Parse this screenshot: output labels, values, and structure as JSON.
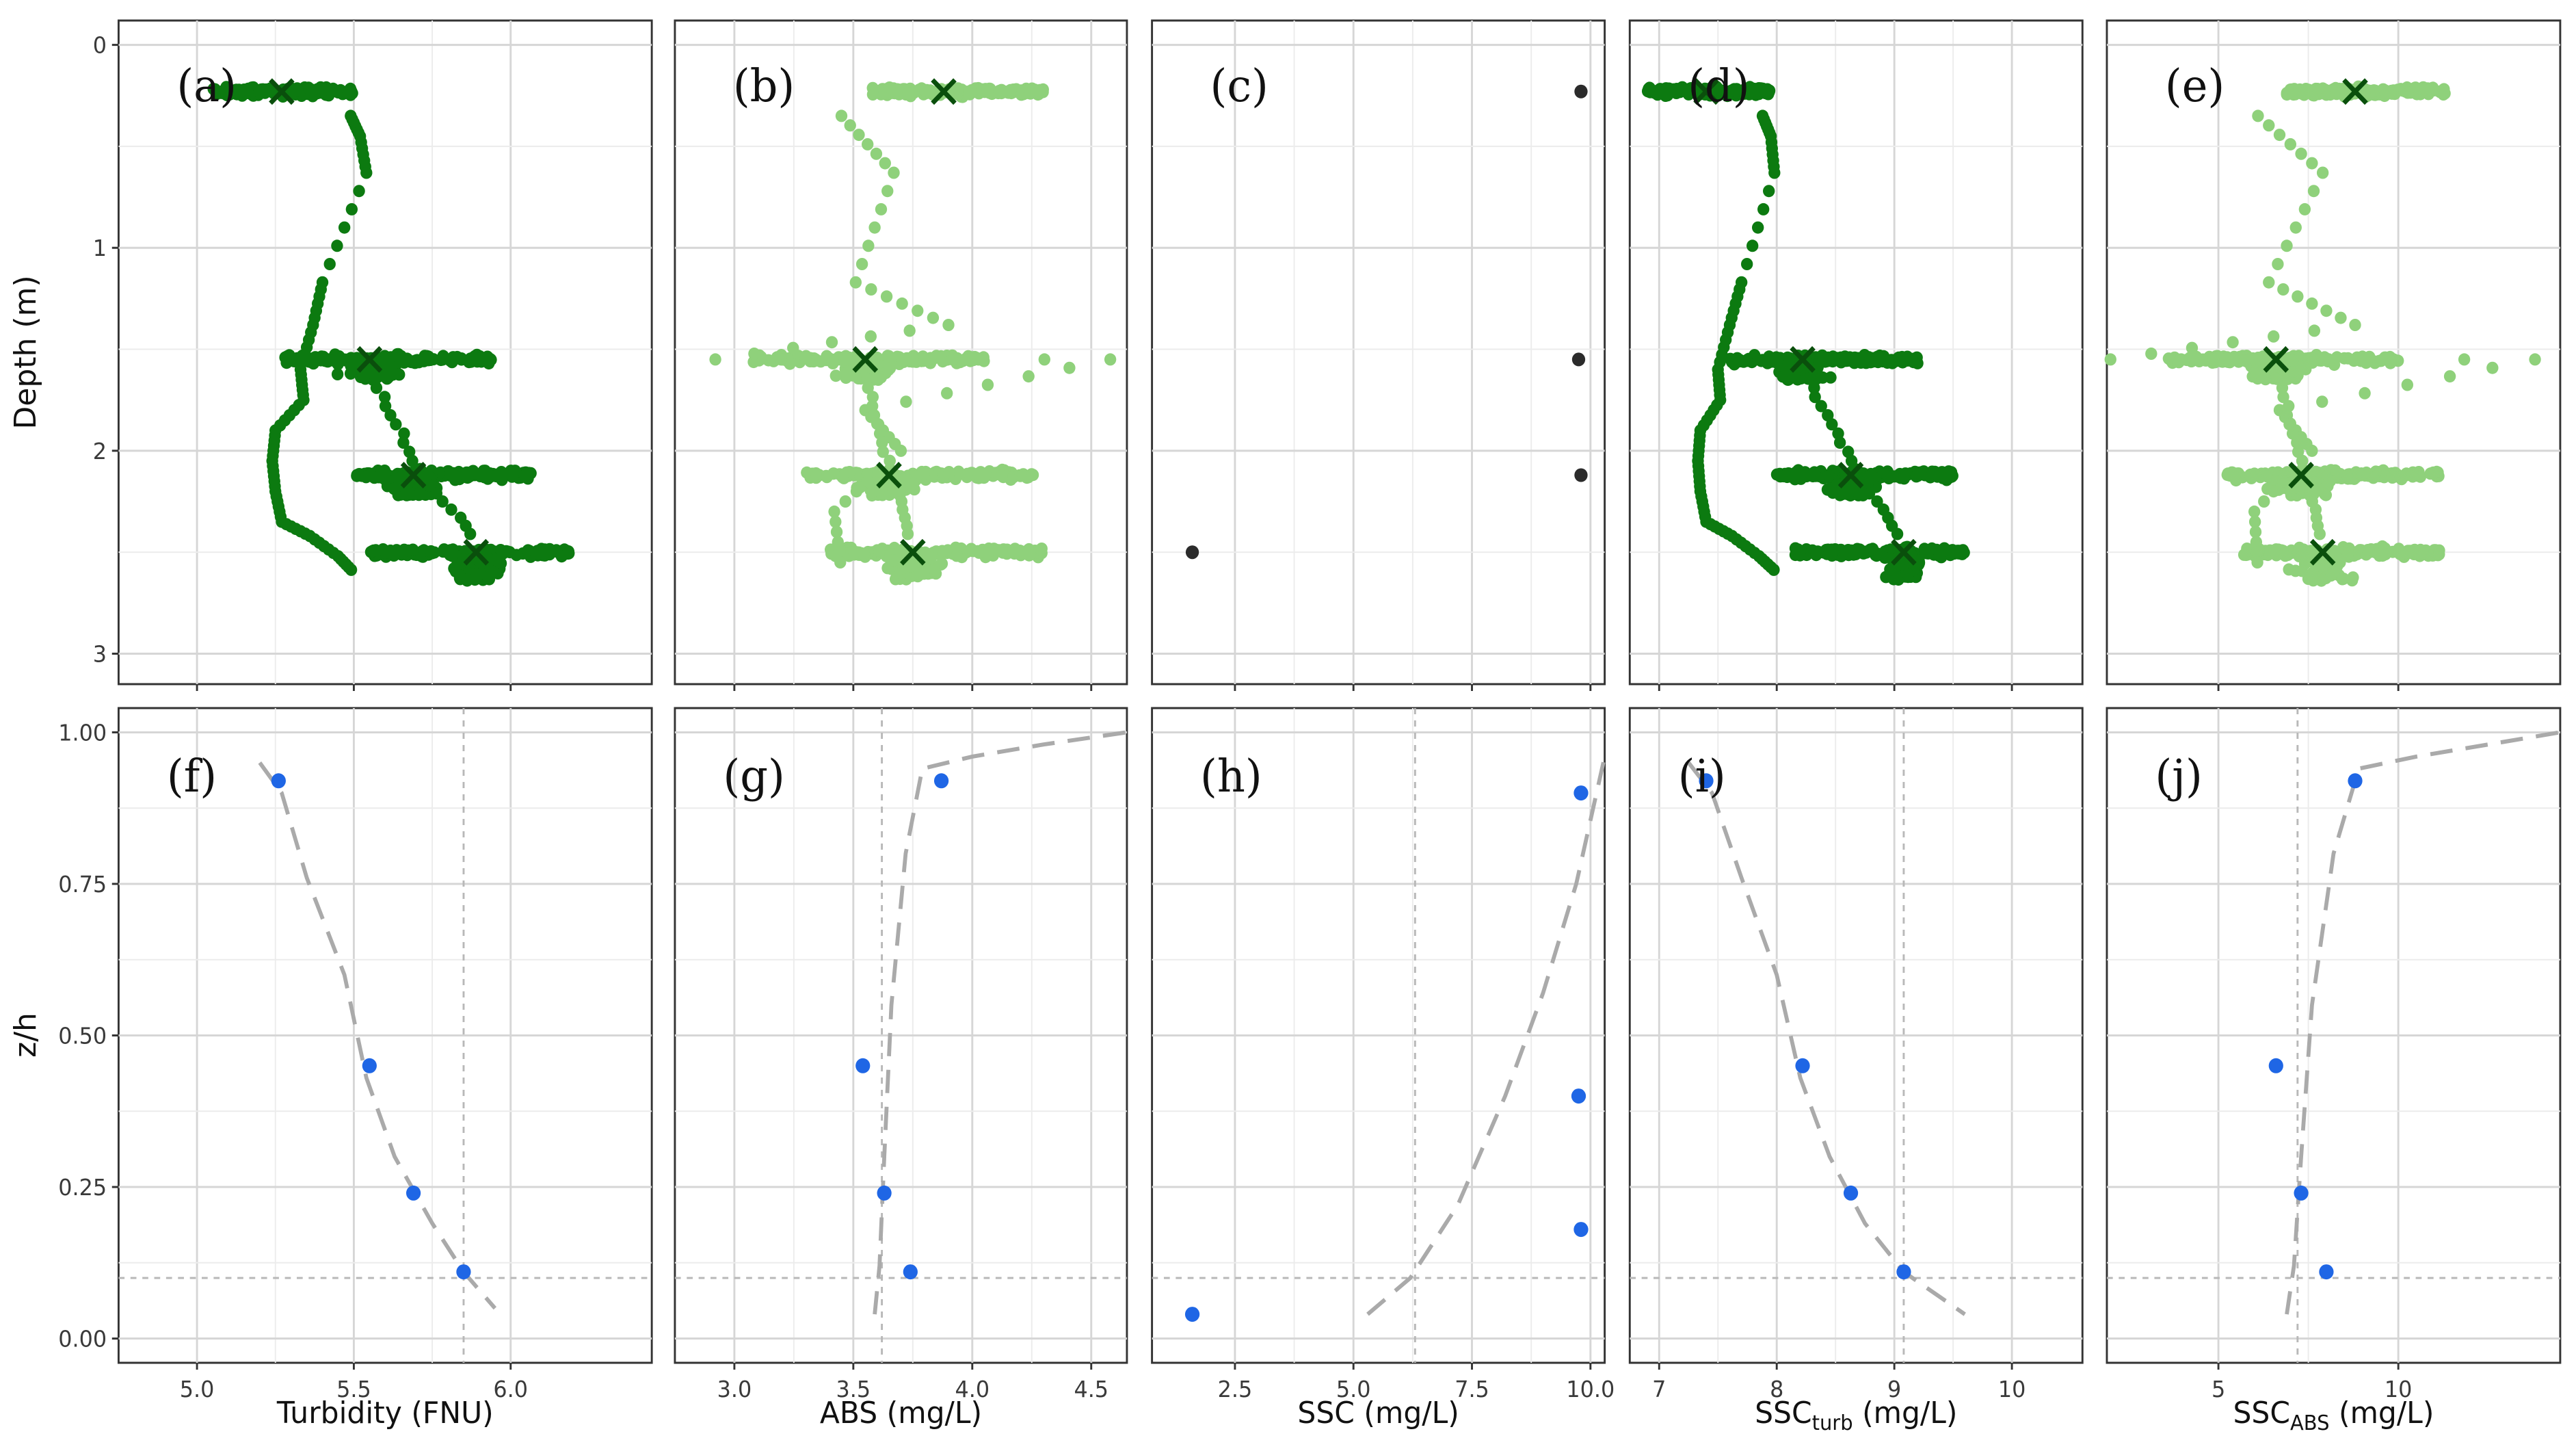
{
  "colors": {
    "dark_green": "#0c7a10",
    "light_green": "#8fd17b",
    "black_point": "#2b2b2b",
    "blue_point": "#1f66e5",
    "mean_marker": "#0a4f0c",
    "fit_line": "#aaaaaa",
    "reference_line": "#b8b8b8"
  },
  "chart_data": [
    {
      "type": "scatter",
      "panel": "(a)",
      "xlabel": "Turbidity (FNU)",
      "ylabel": "Depth (m)",
      "xlim": [
        4.75,
        6.45
      ],
      "ylim": [
        3.15,
        -0.12
      ],
      "xticks": [],
      "yticks": [
        0,
        1,
        2,
        3
      ],
      "point_color": "dark_green",
      "depths": [
        0.23,
        1.55,
        2.12,
        2.5
      ],
      "means": [
        5.27,
        5.55,
        5.69,
        5.89
      ],
      "bands": [
        {
          "depth": 0.23,
          "min": 5.05,
          "max": 5.5
        },
        {
          "depth": 1.55,
          "min": 5.28,
          "max": 5.95
        },
        {
          "depth": 2.12,
          "min": 5.5,
          "max": 6.07
        },
        {
          "depth": 2.5,
          "min": 5.55,
          "max": 6.2
        }
      ],
      "profile": [
        [
          5.49,
          0.35
        ],
        [
          5.52,
          0.45
        ],
        [
          5.54,
          0.63
        ],
        [
          5.4,
          1.17
        ],
        [
          5.37,
          1.38
        ],
        [
          5.33,
          1.6
        ],
        [
          5.34,
          1.75
        ],
        [
          5.25,
          1.9
        ],
        [
          5.24,
          2.05
        ],
        [
          5.25,
          2.2
        ],
        [
          5.27,
          2.35
        ],
        [
          5.36,
          2.42
        ],
        [
          5.45,
          2.52
        ],
        [
          5.5,
          2.6
        ]
      ],
      "mean_points": [
        {
          "x": 5.27,
          "depth": 0.23
        },
        {
          "x": 5.55,
          "depth": 1.55
        },
        {
          "x": 5.69,
          "depth": 2.12
        },
        {
          "x": 5.89,
          "depth": 2.5
        }
      ]
    },
    {
      "type": "scatter",
      "panel": "(b)",
      "xlabel": "ABS (mg/L)",
      "ylabel": "Depth (m)",
      "xlim": [
        2.75,
        4.65
      ],
      "ylim": [
        3.15,
        -0.12
      ],
      "xticks": [],
      "yticks": [
        0,
        1,
        2,
        3
      ],
      "point_color": "light_green",
      "depths": [
        0.23,
        1.55,
        2.12,
        2.5
      ],
      "means": [
        3.88,
        3.55,
        3.65,
        3.75
      ],
      "bands": [
        {
          "depth": 0.23,
          "min": 3.58,
          "max": 4.3
        },
        {
          "depth": 1.55,
          "min": 3.08,
          "max": 4.05
        },
        {
          "depth": 2.12,
          "min": 3.3,
          "max": 4.27
        },
        {
          "depth": 2.5,
          "min": 3.4,
          "max": 4.3
        }
      ],
      "profile": [
        [
          3.45,
          0.35
        ],
        [
          3.67,
          0.63
        ],
        [
          3.51,
          1.17
        ],
        [
          3.9,
          1.38
        ],
        [
          2.92,
          1.55
        ],
        [
          4.58,
          1.55
        ],
        [
          3.55,
          1.8
        ],
        [
          3.7,
          2.0
        ],
        [
          3.42,
          2.3
        ],
        [
          3.45,
          2.6
        ]
      ],
      "mean_points": [
        {
          "x": 3.88,
          "depth": 0.23
        },
        {
          "x": 3.55,
          "depth": 1.55
        },
        {
          "x": 3.65,
          "depth": 2.12
        },
        {
          "x": 3.75,
          "depth": 2.5
        }
      ]
    },
    {
      "type": "scatter",
      "panel": "(c)",
      "xlabel": "SSC (mg/L)",
      "ylabel": "Depth (m)",
      "xlim": [
        0.75,
        10.3
      ],
      "ylim": [
        3.15,
        -0.12
      ],
      "xticks": [],
      "yticks": [
        0,
        1,
        2,
        3
      ],
      "point_color": "black_point",
      "points": [
        {
          "x": 9.8,
          "depth": 0.23
        },
        {
          "x": 9.75,
          "depth": 1.55
        },
        {
          "x": 9.8,
          "depth": 2.12
        },
        {
          "x": 1.6,
          "depth": 2.5
        }
      ]
    },
    {
      "type": "scatter",
      "panel": "(d)",
      "xlabel": "SSC turb (mg/L)",
      "ylabel": "Depth (m)",
      "xlim": [
        6.75,
        10.6
      ],
      "ylim": [
        3.15,
        -0.12
      ],
      "xticks": [],
      "yticks": [
        0,
        1,
        2,
        3
      ],
      "point_color": "dark_green",
      "depths": [
        0.23,
        1.55,
        2.12,
        2.5
      ],
      "means": [
        7.4,
        8.22,
        8.63,
        9.08
      ],
      "bands": [
        {
          "depth": 0.23,
          "min": 6.9,
          "max": 7.95
        },
        {
          "depth": 1.55,
          "min": 7.6,
          "max": 9.2
        },
        {
          "depth": 2.12,
          "min": 8.0,
          "max": 9.5
        },
        {
          "depth": 2.5,
          "min": 8.15,
          "max": 9.6
        }
      ],
      "profile": [
        [
          7.88,
          0.35
        ],
        [
          7.95,
          0.45
        ],
        [
          7.98,
          0.63
        ],
        [
          7.7,
          1.17
        ],
        [
          7.6,
          1.38
        ],
        [
          7.5,
          1.6
        ],
        [
          7.52,
          1.75
        ],
        [
          7.35,
          1.9
        ],
        [
          7.33,
          2.05
        ],
        [
          7.35,
          2.2
        ],
        [
          7.4,
          2.35
        ],
        [
          7.62,
          2.42
        ],
        [
          7.85,
          2.52
        ],
        [
          8.0,
          2.6
        ]
      ],
      "mean_points": [
        {
          "x": 7.4,
          "depth": 0.23
        },
        {
          "x": 8.22,
          "depth": 1.55
        },
        {
          "x": 8.63,
          "depth": 2.12
        },
        {
          "x": 9.08,
          "depth": 2.5
        }
      ]
    },
    {
      "type": "scatter",
      "panel": "(e)",
      "xlabel": "SSC ABS (mg/L)",
      "ylabel": "Depth (m)",
      "xlim": [
        1.9,
        14.5
      ],
      "ylim": [
        3.15,
        -0.12
      ],
      "xticks": [],
      "yticks": [
        0,
        1,
        2,
        3
      ],
      "point_color": "light_green",
      "depths": [
        0.23,
        1.55,
        2.12,
        2.5
      ],
      "means": [
        8.8,
        6.6,
        7.3,
        7.9
      ],
      "bands": [
        {
          "depth": 0.23,
          "min": 6.9,
          "max": 11.3
        },
        {
          "depth": 1.55,
          "min": 3.6,
          "max": 10.0
        },
        {
          "depth": 2.12,
          "min": 5.2,
          "max": 11.2
        },
        {
          "depth": 2.5,
          "min": 5.7,
          "max": 11.2
        }
      ],
      "profile": [
        [
          6.1,
          0.35
        ],
        [
          7.9,
          0.63
        ],
        [
          6.4,
          1.17
        ],
        [
          8.8,
          1.38
        ],
        [
          2.0,
          1.55
        ],
        [
          13.8,
          1.55
        ],
        [
          6.7,
          1.8
        ],
        [
          7.6,
          2.0
        ],
        [
          6.0,
          2.3
        ],
        [
          6.1,
          2.6
        ]
      ],
      "mean_points": [
        {
          "x": 8.8,
          "depth": 0.23
        },
        {
          "x": 6.6,
          "depth": 1.55
        },
        {
          "x": 7.3,
          "depth": 2.12
        },
        {
          "x": 7.9,
          "depth": 2.5
        }
      ]
    },
    {
      "type": "scatter",
      "panel": "(f)",
      "xlabel": "Turbidity (FNU)",
      "ylabel": "z/h",
      "xlim": [
        4.75,
        6.45
      ],
      "ylim": [
        -0.04,
        1.04
      ],
      "xticks": [
        "5.0",
        "5.5",
        "6.0"
      ],
      "xtick_values": [
        5.0,
        5.5,
        6.0
      ],
      "yticks": [
        "0.00",
        "0.25",
        "0.50",
        "0.75",
        "1.00"
      ],
      "ytick_values": [
        0,
        0.25,
        0.5,
        0.75,
        1.0
      ],
      "vline": 5.85,
      "hline": 0.1,
      "points": [
        {
          "x": 5.26,
          "y": 0.92
        },
        {
          "x": 5.55,
          "y": 0.45
        },
        {
          "x": 5.69,
          "y": 0.24
        },
        {
          "x": 5.85,
          "y": 0.11
        }
      ],
      "fit": [
        [
          5.2,
          0.95
        ],
        [
          5.27,
          0.9
        ],
        [
          5.35,
          0.76
        ],
        [
          5.47,
          0.6
        ],
        [
          5.54,
          0.43
        ],
        [
          5.63,
          0.3
        ],
        [
          5.75,
          0.19
        ],
        [
          5.85,
          0.11
        ],
        [
          5.95,
          0.05
        ]
      ]
    },
    {
      "type": "scatter",
      "panel": "(g)",
      "xlabel": "ABS (mg/L)",
      "ylabel": "z/h",
      "xlim": [
        2.75,
        4.65
      ],
      "ylim": [
        -0.04,
        1.04
      ],
      "xticks": [
        "3.0",
        "3.5",
        "4.0",
        "4.5"
      ],
      "xtick_values": [
        3.0,
        3.5,
        4.0,
        4.5
      ],
      "yticks": [],
      "ytick_values": [
        0,
        0.25,
        0.5,
        0.75,
        1.0
      ],
      "vline": 3.62,
      "hline": 0.1,
      "points": [
        {
          "x": 3.87,
          "y": 0.92
        },
        {
          "x": 3.54,
          "y": 0.45
        },
        {
          "x": 3.63,
          "y": 0.24
        },
        {
          "x": 3.74,
          "y": 0.11
        }
      ],
      "fit": [
        [
          3.59,
          0.04
        ],
        [
          3.61,
          0.12
        ],
        [
          3.63,
          0.3
        ],
        [
          3.66,
          0.55
        ],
        [
          3.72,
          0.8
        ],
        [
          3.79,
          0.94
        ],
        [
          4.0,
          0.96
        ],
        [
          4.3,
          0.98
        ],
        [
          4.65,
          1.0
        ]
      ]
    },
    {
      "type": "scatter",
      "panel": "(h)",
      "xlabel": "SSC (mg/L)",
      "ylabel": "z/h",
      "xlim": [
        0.75,
        10.3
      ],
      "ylim": [
        -0.04,
        1.04
      ],
      "xticks": [
        "2.5",
        "5.0",
        "7.5",
        "10.0"
      ],
      "xtick_values": [
        2.5,
        5.0,
        7.5,
        10.0
      ],
      "yticks": [],
      "ytick_values": [
        0,
        0.25,
        0.5,
        0.75,
        1.0
      ],
      "vline": 6.3,
      "hline": 0.1,
      "points": [
        {
          "x": 9.8,
          "y": 0.9
        },
        {
          "x": 9.75,
          "y": 0.4
        },
        {
          "x": 9.8,
          "y": 0.18
        },
        {
          "x": 1.6,
          "y": 0.04
        }
      ],
      "fit": [
        [
          5.3,
          0.04
        ],
        [
          6.2,
          0.1
        ],
        [
          7.2,
          0.22
        ],
        [
          8.2,
          0.4
        ],
        [
          9.0,
          0.57
        ],
        [
          9.7,
          0.75
        ],
        [
          10.3,
          0.96
        ]
      ]
    },
    {
      "type": "scatter",
      "panel": "(i)",
      "xlabel": "SSC turb (mg/L)",
      "ylabel": "z/h",
      "xlim": [
        6.75,
        10.6
      ],
      "ylim": [
        -0.04,
        1.04
      ],
      "xticks": [
        "7",
        "8",
        "9",
        "10"
      ],
      "xtick_values": [
        7,
        8,
        9,
        10
      ],
      "yticks": [],
      "ytick_values": [
        0,
        0.25,
        0.5,
        0.75,
        1.0
      ],
      "vline": 9.08,
      "hline": 0.1,
      "points": [
        {
          "x": 7.4,
          "y": 0.92
        },
        {
          "x": 8.22,
          "y": 0.45
        },
        {
          "x": 8.63,
          "y": 0.24
        },
        {
          "x": 9.08,
          "y": 0.11
        }
      ],
      "fit": [
        [
          7.25,
          0.95
        ],
        [
          7.45,
          0.9
        ],
        [
          7.7,
          0.76
        ],
        [
          8.0,
          0.6
        ],
        [
          8.2,
          0.43
        ],
        [
          8.45,
          0.3
        ],
        [
          8.75,
          0.19
        ],
        [
          9.08,
          0.11
        ],
        [
          9.6,
          0.04
        ]
      ]
    },
    {
      "type": "scatter",
      "panel": "(j)",
      "xlabel": "SSC ABS (mg/L)",
      "ylabel": "z/h",
      "xlim": [
        1.9,
        14.5
      ],
      "ylim": [
        -0.04,
        1.04
      ],
      "xticks": [
        "5",
        "10"
      ],
      "xtick_values": [
        5,
        10
      ],
      "yticks": [],
      "ytick_values": [
        0,
        0.25,
        0.5,
        0.75,
        1.0
      ],
      "vline": 7.2,
      "hline": 0.1,
      "points": [
        {
          "x": 8.8,
          "y": 0.92
        },
        {
          "x": 6.6,
          "y": 0.45
        },
        {
          "x": 7.3,
          "y": 0.24
        },
        {
          "x": 8.0,
          "y": 0.11
        }
      ],
      "fit": [
        [
          6.9,
          0.04
        ],
        [
          7.1,
          0.12
        ],
        [
          7.3,
          0.3
        ],
        [
          7.6,
          0.55
        ],
        [
          8.2,
          0.8
        ],
        [
          8.9,
          0.94
        ],
        [
          10.5,
          0.96
        ],
        [
          12.5,
          0.98
        ],
        [
          14.5,
          1.0
        ]
      ]
    }
  ],
  "text": {
    "panel_labels": [
      "(a)",
      "(b)",
      "(c)",
      "(d)",
      "(e)",
      "(f)",
      "(g)",
      "(h)",
      "(i)",
      "(j)"
    ],
    "ylabel_top": "Depth (m)",
    "ylabel_bottom": "z/h",
    "xlabels": [
      {
        "main": "Turbidity (FNU)",
        "sub": ""
      },
      {
        "main": "ABS (mg/L)",
        "sub": ""
      },
      {
        "main": "SSC (mg/L)",
        "sub": ""
      },
      {
        "main": "SSC",
        "sub": "turb",
        "unit": " (mg/L)"
      },
      {
        "main": "SSC",
        "sub": "ABS",
        "unit": " (mg/L)"
      }
    ]
  }
}
